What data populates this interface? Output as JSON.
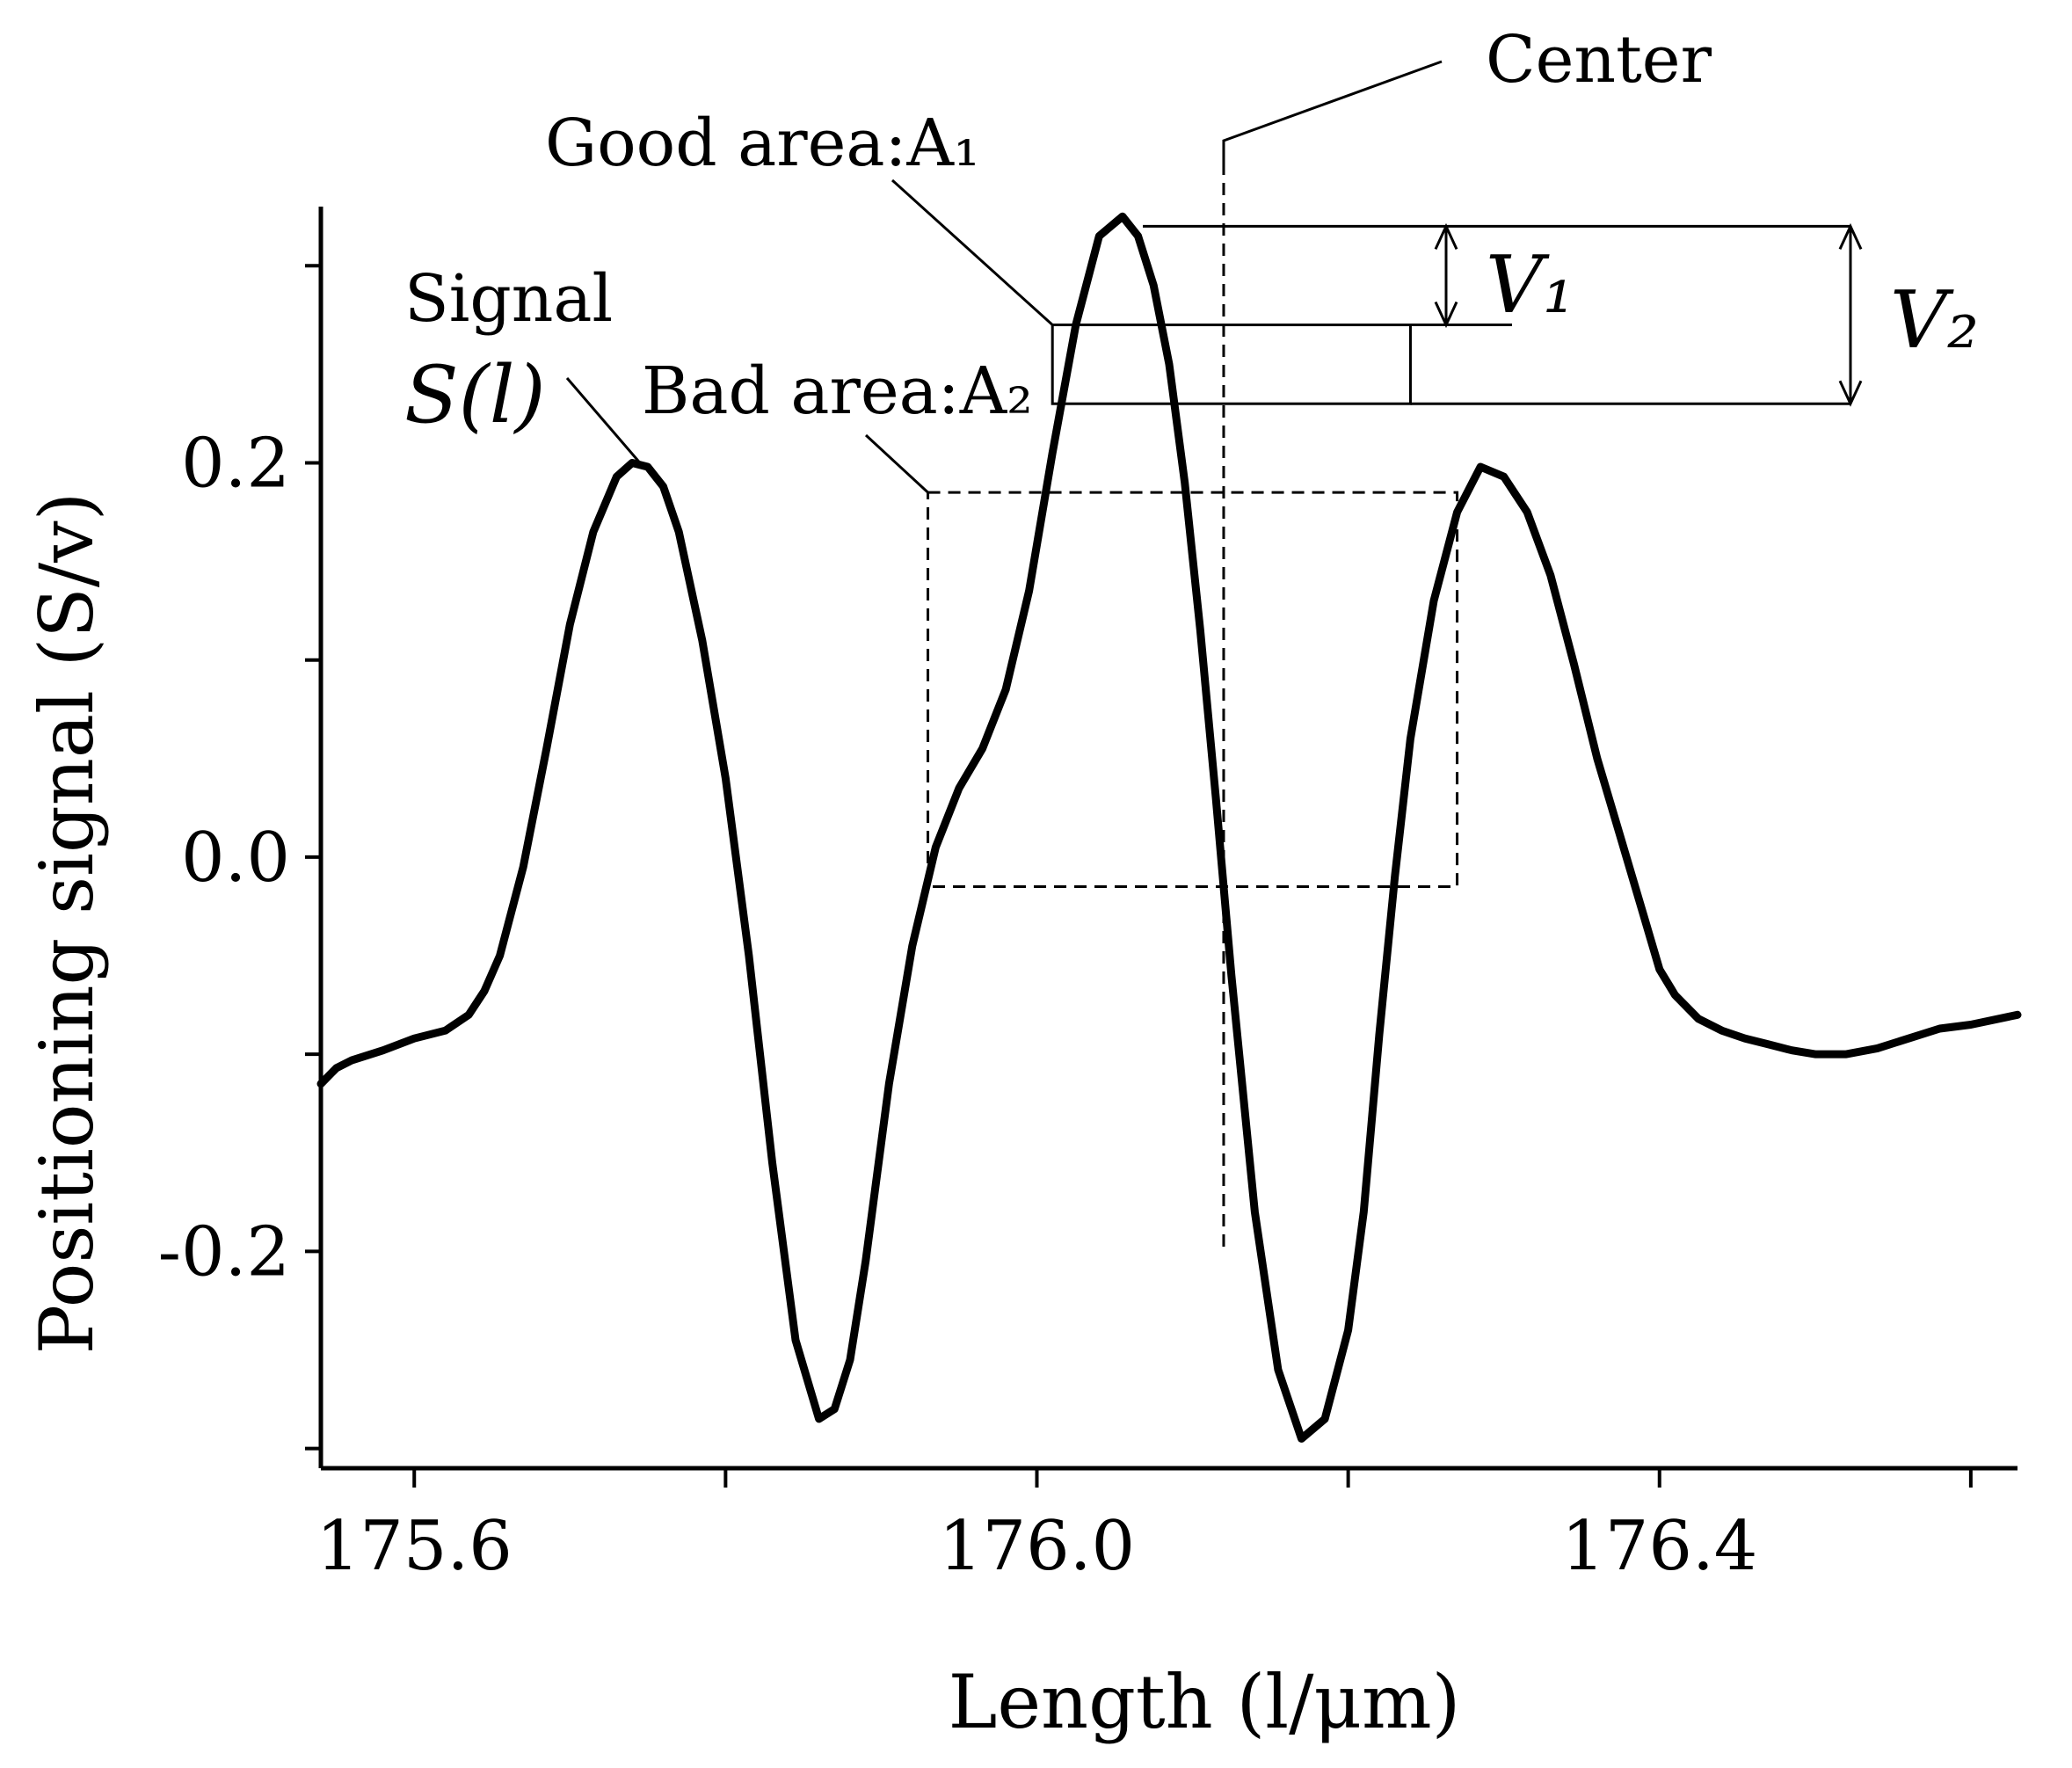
{
  "chart_data": {
    "type": "line",
    "title": "",
    "xlabel": "Length  (l/μm)",
    "ylabel": "Positioning signal  (S/v)",
    "xlim": [
      175.54,
      176.63
    ],
    "ylim": [
      -0.31,
      0.33
    ],
    "x_ticks": [
      175.6,
      176.0,
      176.4
    ],
    "y_ticks": [
      -0.2,
      0.0,
      0.2
    ],
    "x_tick_labels": [
      "175.6",
      "176.0",
      "176.4"
    ],
    "y_tick_labels": [
      "-0.2",
      "0.0",
      "0.2"
    ],
    "x_minor_ticks": [
      175.6,
      175.8,
      176.0,
      176.2,
      176.4,
      176.6
    ],
    "y_minor_ticks": [
      -0.3,
      -0.2,
      -0.1,
      0.0,
      0.1,
      0.2,
      0.3
    ],
    "grid": false,
    "series": [
      {
        "name": "Signal S(l)",
        "color": "#000000",
        "x": [
          175.54,
          175.55,
          175.56,
          175.58,
          175.6,
          175.62,
          175.635,
          175.645,
          175.655,
          175.67,
          175.685,
          175.7,
          175.715,
          175.73,
          175.74,
          175.75,
          175.76,
          175.77,
          175.785,
          175.8,
          175.815,
          175.83,
          175.845,
          175.86,
          175.87,
          175.88,
          175.89,
          175.905,
          175.92,
          175.935,
          175.95,
          175.965,
          175.98,
          175.995,
          176.01,
          176.025,
          176.04,
          176.055,
          176.065,
          176.075,
          176.085,
          176.095,
          176.105,
          176.115,
          176.125,
          176.14,
          176.155,
          176.17,
          176.185,
          176.2,
          176.21,
          176.22,
          176.23,
          176.24,
          176.255,
          176.27,
          176.285,
          176.3,
          176.315,
          176.33,
          176.345,
          176.36,
          176.375,
          176.39,
          176.4,
          176.41,
          176.425,
          176.44,
          176.455,
          176.47,
          176.485,
          176.5,
          176.52,
          176.54,
          176.56,
          176.58,
          176.6,
          176.63
        ],
        "values": [
          -0.115,
          -0.107,
          -0.103,
          -0.098,
          -0.092,
          -0.088,
          -0.08,
          -0.068,
          -0.05,
          -0.005,
          0.055,
          0.118,
          0.165,
          0.193,
          0.2,
          0.198,
          0.188,
          0.165,
          0.11,
          0.04,
          -0.05,
          -0.155,
          -0.245,
          -0.285,
          -0.28,
          -0.255,
          -0.205,
          -0.115,
          -0.045,
          0.005,
          0.035,
          0.055,
          0.085,
          0.135,
          0.205,
          0.27,
          0.315,
          0.325,
          0.315,
          0.29,
          0.25,
          0.19,
          0.115,
          0.03,
          -0.06,
          -0.18,
          -0.26,
          -0.295,
          -0.285,
          -0.24,
          -0.18,
          -0.09,
          -0.01,
          0.06,
          0.13,
          0.175,
          0.198,
          0.193,
          0.175,
          0.143,
          0.098,
          0.05,
          0.01,
          -0.03,
          -0.057,
          -0.07,
          -0.082,
          -0.088,
          -0.092,
          -0.095,
          -0.098,
          -0.1,
          -0.1,
          -0.097,
          -0.092,
          -0.087,
          -0.085,
          -0.08
        ]
      }
    ],
    "annotations": [
      {
        "text": "Center",
        "points_to": "vertical dashed line through the main peak at l ≈ 176.12"
      },
      {
        "text": "Good area:A₁",
        "points_to": "solid rectangle spanning l ≈ 176.01–176.24, S ≈ 0.23–0.27"
      },
      {
        "text": "Bad area:A₂",
        "points_to": "dashed rectangle spanning l ≈ 175.93–176.27, S ≈ -0.015–0.185"
      },
      {
        "text": "Signal",
        "points_to": "left side peak at l ≈ 175.75"
      },
      {
        "text": "S(l)",
        "points_to": "left side peak at l ≈ 175.75"
      },
      {
        "text": "V₁",
        "points_to": "height from main peak (≈0.32) down to top of good area (≈0.27)"
      },
      {
        "text": "V₂",
        "points_to": "height from main peak (≈0.32) down to bottom of good area (≈0.23)"
      }
    ]
  }
}
